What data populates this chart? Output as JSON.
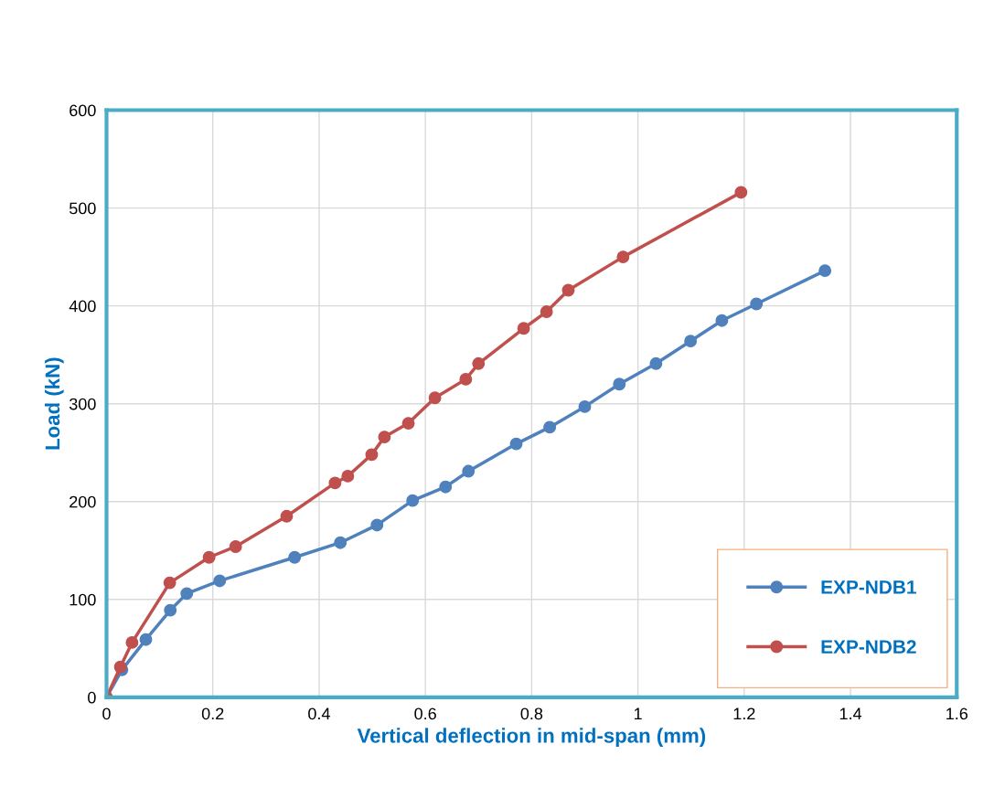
{
  "chart_data": {
    "type": "line",
    "xlabel": "Vertical deflection in mid-span (mm)",
    "ylabel": "Load (kN)",
    "xlim": [
      0,
      1.6
    ],
    "xticks": [
      0,
      0.2,
      0.4,
      0.6,
      0.8,
      1,
      1.2,
      1.4,
      1.6
    ],
    "ylim": [
      0,
      600
    ],
    "yticks": [
      0,
      100,
      200,
      300,
      400,
      500,
      600
    ],
    "grid": true,
    "legend": "bottom right",
    "marker": "circle",
    "line_style": "solid",
    "series": [
      {
        "name": "EXP-NDB1",
        "color": "#4f81bd",
        "x": [
          0,
          0.029,
          0.074,
          0.12,
          0.151,
          0.213,
          0.354,
          0.44,
          0.509,
          0.576,
          0.638,
          0.681,
          0.771,
          0.834,
          0.9,
          0.965,
          1.034,
          1.099,
          1.158,
          1.223,
          1.352
        ],
        "values": [
          0,
          28,
          59,
          89,
          106,
          119,
          143,
          158,
          176,
          201,
          215,
          231,
          259,
          276,
          297,
          320,
          341,
          364,
          385,
          402,
          436
        ]
      },
      {
        "name": "EXP-NDB2",
        "color": "#c0504d",
        "x": [
          0,
          0.026,
          0.048,
          0.119,
          0.193,
          0.243,
          0.339,
          0.43,
          0.454,
          0.499,
          0.523,
          0.568,
          0.618,
          0.676,
          0.7,
          0.785,
          0.828,
          0.869,
          0.972,
          1.194
        ],
        "values": [
          0,
          31,
          56,
          117,
          143,
          154,
          185,
          219,
          226,
          248,
          266,
          280,
          306,
          325,
          341,
          377,
          394,
          416,
          450,
          516
        ]
      }
    ]
  }
}
